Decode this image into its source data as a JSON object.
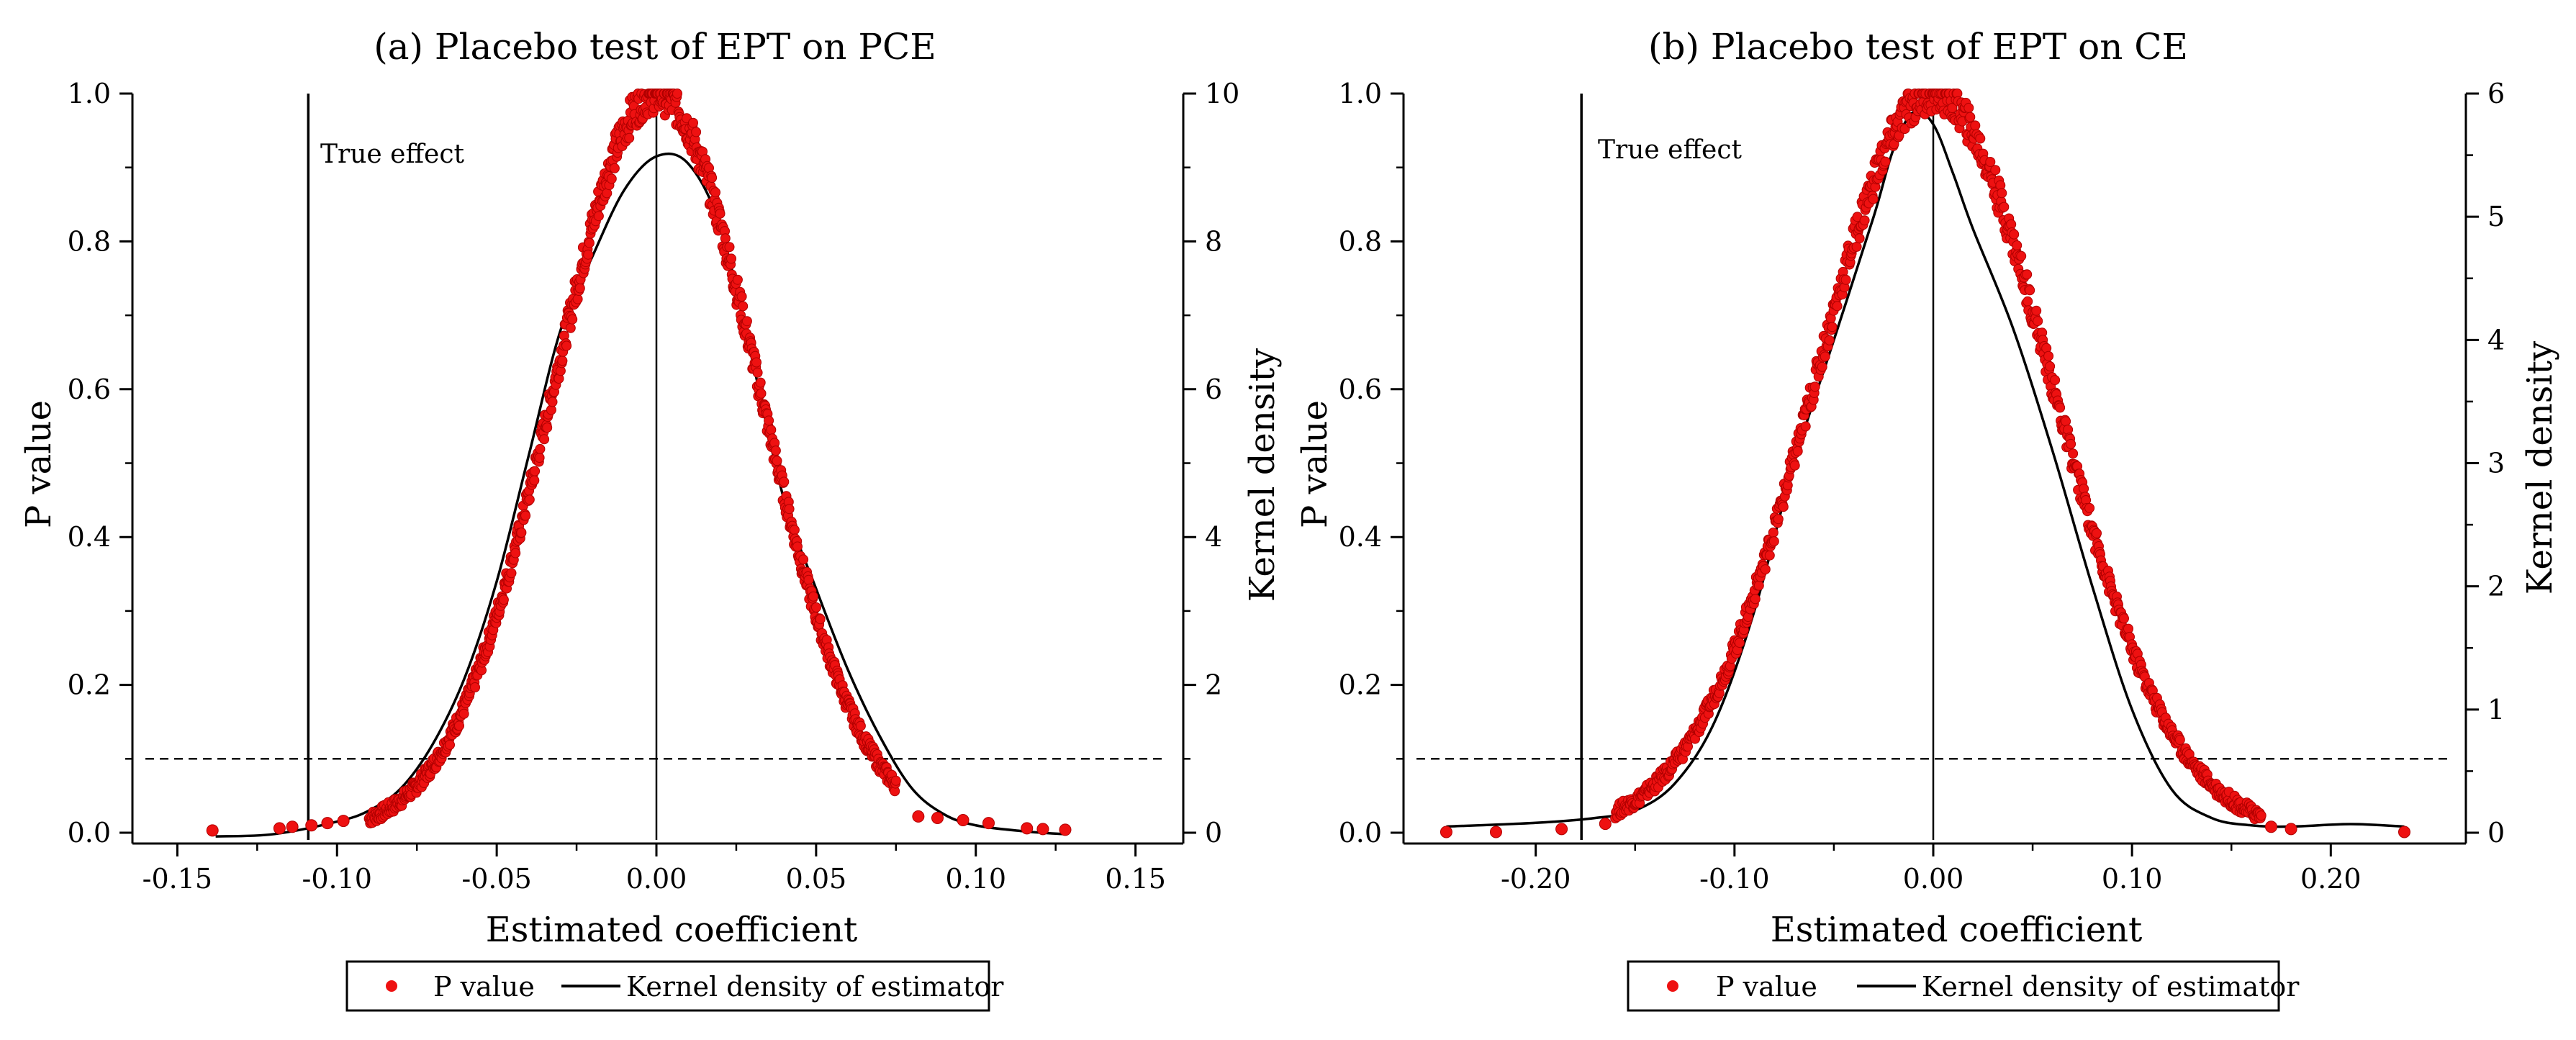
{
  "chart_data": [
    {
      "type": "scatter",
      "title": "(a) Placebo test of EPT on PCE",
      "xlabel": "Estimated coefficient",
      "ylabel": "P value",
      "y2label": "Kernel density",
      "xlim": [
        -0.16,
        0.16
      ],
      "ylim": [
        0,
        1.0
      ],
      "y2lim": [
        0,
        10
      ],
      "xticks": [
        -0.15,
        -0.1,
        -0.05,
        0.0,
        0.05,
        0.1,
        0.15
      ],
      "xtick_labels": [
        "-0.15",
        "-0.10",
        "-0.05",
        "0.00",
        "0.05",
        "0.10",
        "0.15"
      ],
      "yticks": [
        0.0,
        0.2,
        0.4,
        0.6,
        0.8,
        1.0
      ],
      "ytick_labels": [
        "0.0",
        "0.2",
        "0.4",
        "0.6",
        "0.8",
        "1.0"
      ],
      "y2ticks": [
        0,
        2,
        4,
        6,
        8,
        10
      ],
      "y2tick_labels": [
        "0",
        "2",
        "4",
        "6",
        "8",
        "10"
      ],
      "true_effect_x": -0.109,
      "true_effect_label": "True effect",
      "zero_line_x": 0,
      "threshold_p": 0.1,
      "pvalue_sd": 0.032,
      "pvalue_range": [
        -0.09,
        0.075
      ],
      "pvalue_outliers": [
        {
          "x": -0.139,
          "y": 0.003
        },
        {
          "x": -0.118,
          "y": 0.006
        },
        {
          "x": -0.114,
          "y": 0.008
        },
        {
          "x": -0.108,
          "y": 0.01
        },
        {
          "x": -0.103,
          "y": 0.013
        },
        {
          "x": -0.098,
          "y": 0.016
        },
        {
          "x": 0.082,
          "y": 0.022
        },
        {
          "x": 0.088,
          "y": 0.02
        },
        {
          "x": 0.096,
          "y": 0.017
        },
        {
          "x": 0.104,
          "y": 0.013
        },
        {
          "x": 0.116,
          "y": 0.006
        },
        {
          "x": 0.121,
          "y": 0.005
        },
        {
          "x": 0.128,
          "y": 0.004
        }
      ],
      "kde": {
        "x": [
          -0.138,
          -0.12,
          -0.1,
          -0.09,
          -0.08,
          -0.07,
          -0.06,
          -0.05,
          -0.04,
          -0.03,
          -0.02,
          -0.01,
          0.0,
          0.01,
          0.02,
          0.03,
          0.04,
          0.05,
          0.06,
          0.07,
          0.08,
          0.09,
          0.1,
          0.115,
          0.128
        ],
        "y": [
          -0.05,
          -0.02,
          0.15,
          0.3,
          0.6,
          1.2,
          2.1,
          3.4,
          5.1,
          6.8,
          7.8,
          8.7,
          9.15,
          9.05,
          8.2,
          6.4,
          4.5,
          3.3,
          2.2,
          1.3,
          0.6,
          0.25,
          0.1,
          0.02,
          -0.02
        ]
      },
      "legend": {
        "position": "bottom",
        "entries": [
          "P value",
          "Kernel density of estimator"
        ]
      }
    },
    {
      "type": "scatter",
      "title": "(b) Placebo test of EPT on CE",
      "xlabel": "Estimated coefficient",
      "ylabel": "P value",
      "y2label": "Kernel density",
      "xlim": [
        -0.26,
        0.26
      ],
      "ylim": [
        0,
        1.0
      ],
      "y2lim": [
        0,
        6
      ],
      "xticks": [
        -0.2,
        -0.1,
        0.0,
        0.1,
        0.2
      ],
      "xtick_labels": [
        "-0.20",
        "-0.10",
        "0.00",
        "0.10",
        "0.20"
      ],
      "yticks": [
        0.0,
        0.2,
        0.4,
        0.6,
        0.8,
        1.0
      ],
      "ytick_labels": [
        "0.0",
        "0.2",
        "0.4",
        "0.6",
        "0.8",
        "1.0"
      ],
      "y2ticks": [
        0,
        1,
        2,
        3,
        4,
        5,
        6
      ],
      "y2tick_labels": [
        "0",
        "1",
        "2",
        "3",
        "4",
        "5",
        "6"
      ],
      "true_effect_x": -0.177,
      "true_effect_label": "True effect",
      "zero_line_x": 0,
      "threshold_p": 0.1,
      "pvalue_sd": 0.06,
      "pvalue_range": [
        -0.16,
        0.165
      ],
      "pvalue_outliers": [
        {
          "x": -0.245,
          "y": 0.001
        },
        {
          "x": -0.22,
          "y": 0.001
        },
        {
          "x": -0.187,
          "y": 0.005
        },
        {
          "x": -0.165,
          "y": 0.012
        },
        {
          "x": 0.17,
          "y": 0.008
        },
        {
          "x": 0.18,
          "y": 0.005
        },
        {
          "x": 0.237,
          "y": 0.001
        }
      ],
      "kde": {
        "x": [
          -0.245,
          -0.2,
          -0.17,
          -0.15,
          -0.13,
          -0.11,
          -0.09,
          -0.07,
          -0.05,
          -0.03,
          -0.02,
          -0.01,
          0.0,
          0.01,
          0.02,
          0.04,
          0.06,
          0.08,
          0.1,
          0.12,
          0.14,
          0.16,
          0.18,
          0.21,
          0.237
        ],
        "y": [
          0.05,
          0.08,
          0.12,
          0.18,
          0.4,
          0.9,
          1.8,
          3.0,
          4.0,
          5.0,
          5.55,
          5.85,
          5.75,
          5.35,
          4.9,
          4.1,
          3.1,
          2.0,
          1.0,
          0.35,
          0.12,
          0.06,
          0.05,
          0.07,
          0.05
        ]
      },
      "legend": {
        "position": "bottom",
        "entries": [
          "P value",
          "Kernel density of estimator"
        ]
      }
    }
  ],
  "colors": {
    "pvalue": "#ee1111",
    "kde": "#000000",
    "axes": "#000000"
  }
}
